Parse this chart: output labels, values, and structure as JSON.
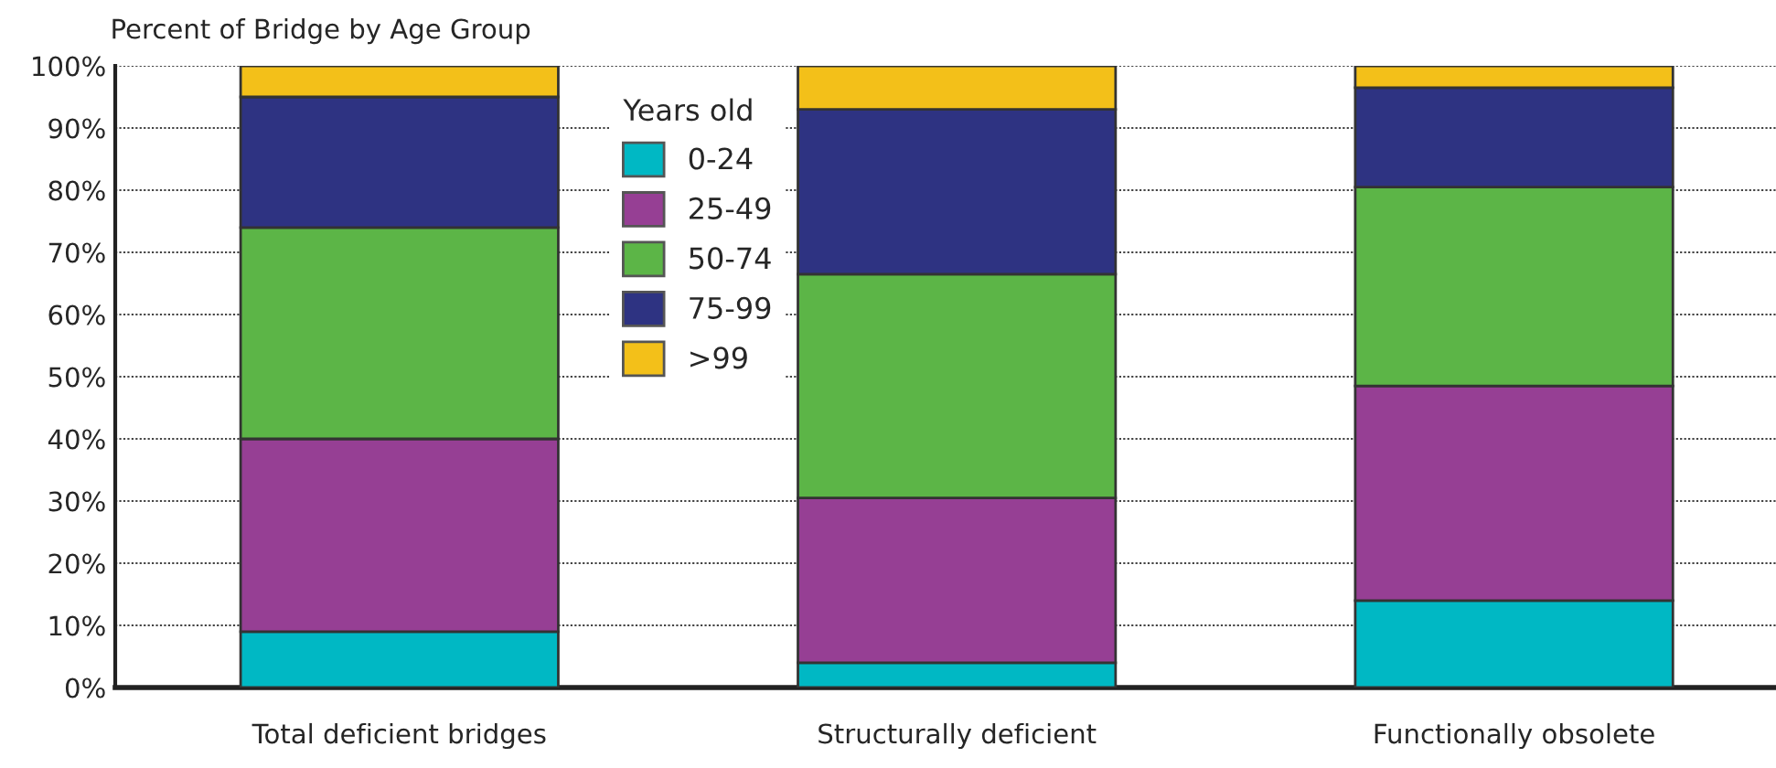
{
  "chart_data": {
    "type": "bar",
    "stacked": true,
    "ylabel": "Percent of Bridge by Age Group",
    "legend_title": "Years old",
    "categories": [
      "Total deficient bridges",
      "Structurally deficient",
      "Functionally obsolete"
    ],
    "series": [
      {
        "name": "0-24",
        "color": "#00b8c4",
        "values": [
          9,
          4,
          14
        ]
      },
      {
        "name": "25-49",
        "color": "#963f94",
        "values": [
          31,
          26.5,
          34.5
        ]
      },
      {
        "name": "50-74",
        "color": "#5cb547",
        "values": [
          34,
          36,
          32
        ]
      },
      {
        "name": "75-99",
        "color": "#2e3382",
        "values": [
          21,
          26.5,
          16
        ]
      },
      {
        "name": ">99",
        "color": "#f3c019",
        "values": [
          5,
          7,
          3.5
        ]
      }
    ],
    "ylim": [
      0,
      100
    ],
    "yticks": [
      {
        "value": 0,
        "label": "0%"
      },
      {
        "value": 10,
        "label": "10%"
      },
      {
        "value": 20,
        "label": "20%"
      },
      {
        "value": 30,
        "label": "30%"
      },
      {
        "value": 40,
        "label": "40%"
      },
      {
        "value": 50,
        "label": "50%"
      },
      {
        "value": 60,
        "label": "60%"
      },
      {
        "value": 70,
        "label": "70%"
      },
      {
        "value": 80,
        "label": "80%"
      },
      {
        "value": 90,
        "label": "90%"
      },
      {
        "value": 100,
        "label": "100%"
      }
    ],
    "grid": "y",
    "legend": "top"
  }
}
